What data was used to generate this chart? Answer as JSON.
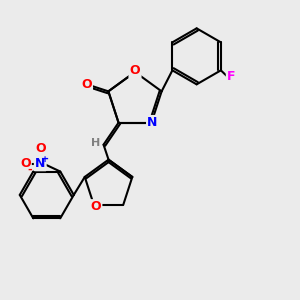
{
  "background_color": "#ebebeb",
  "bond_color": "#000000",
  "bond_width": 1.5,
  "atom_colors": {
    "O": "#ff0000",
    "N": "#0000ff",
    "F": "#ff00ff",
    "C": "#000000",
    "H": "#808080"
  },
  "font_size": 9
}
